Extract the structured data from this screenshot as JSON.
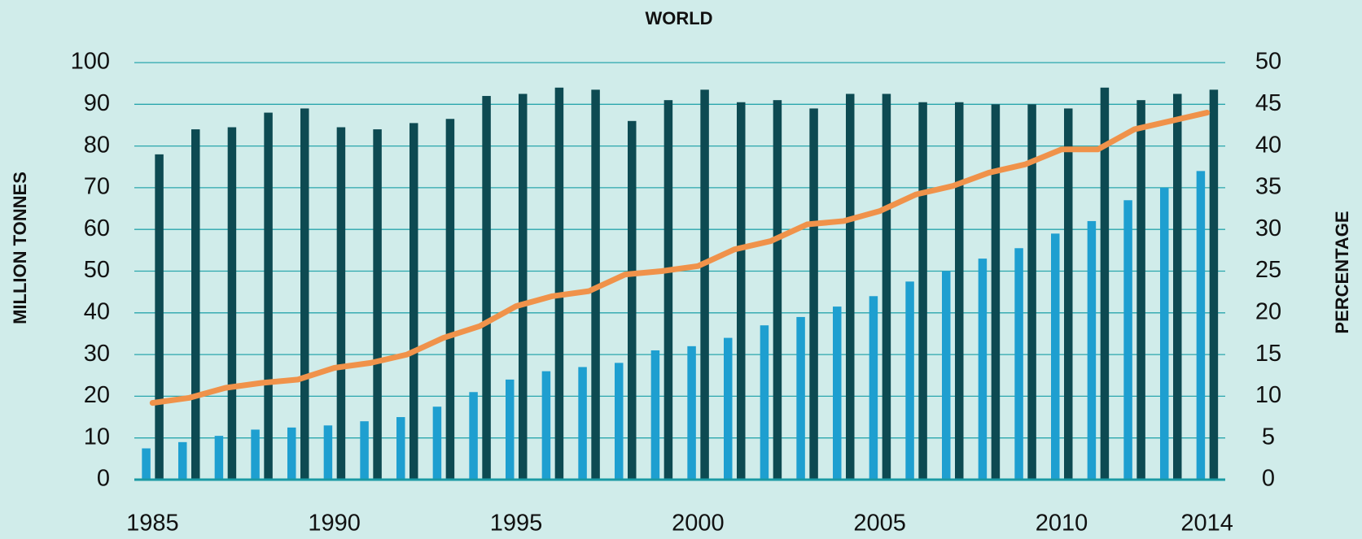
{
  "chart_data": {
    "type": "bar",
    "title": "WORLD",
    "y_label": "MILLION TONNES",
    "y2_label": "PERCENTAGE",
    "categories": [
      "1985",
      null,
      null,
      null,
      null,
      "1990",
      null,
      null,
      null,
      null,
      "1995",
      null,
      null,
      null,
      null,
      "2000",
      null,
      null,
      null,
      null,
      "2005",
      null,
      null,
      null,
      null,
      "2010",
      null,
      null,
      null,
      "2014"
    ],
    "series": [
      {
        "type": "bar",
        "color": "#1e9fd0",
        "values": [
          7.5,
          9,
          10.5,
          12,
          12.5,
          13,
          14,
          15,
          17.5,
          21,
          24,
          26,
          27,
          28,
          31,
          32,
          34,
          37,
          39,
          41.5,
          44,
          47.5,
          50,
          53,
          55.5,
          59,
          62,
          67,
          70,
          74
        ]
      },
      {
        "type": "bar",
        "color": "#0d4a52",
        "values": [
          78,
          84,
          84.5,
          88,
          89,
          84.5,
          84,
          85.5,
          86.5,
          92,
          92.5,
          94,
          93.5,
          86,
          91,
          93.5,
          90.5,
          91,
          89,
          92.5,
          92.5,
          90.5,
          90.5,
          90,
          90,
          89,
          94,
          91,
          92.5,
          93.5
        ]
      },
      {
        "type": "line",
        "axis": "y2",
        "color": "#f0924a",
        "values": [
          9.2,
          9.8,
          11,
          11.6,
          12,
          13.4,
          14,
          15,
          17,
          18.4,
          20.8,
          22,
          22.6,
          24.6,
          25,
          25.6,
          27.6,
          28.6,
          30.6,
          31,
          32.2,
          34.2,
          35.2,
          36.8,
          37.8,
          39.6,
          39.6,
          42,
          43,
          44
        ]
      }
    ],
    "ylim": [
      0,
      100
    ],
    "yticks": [
      0,
      10,
      20,
      30,
      40,
      50,
      60,
      70,
      80,
      90,
      100
    ],
    "y2lim": [
      0,
      50
    ],
    "y2ticks": [
      0,
      5,
      10,
      15,
      20,
      25,
      30,
      35,
      40,
      45,
      50
    ],
    "grid": true
  }
}
